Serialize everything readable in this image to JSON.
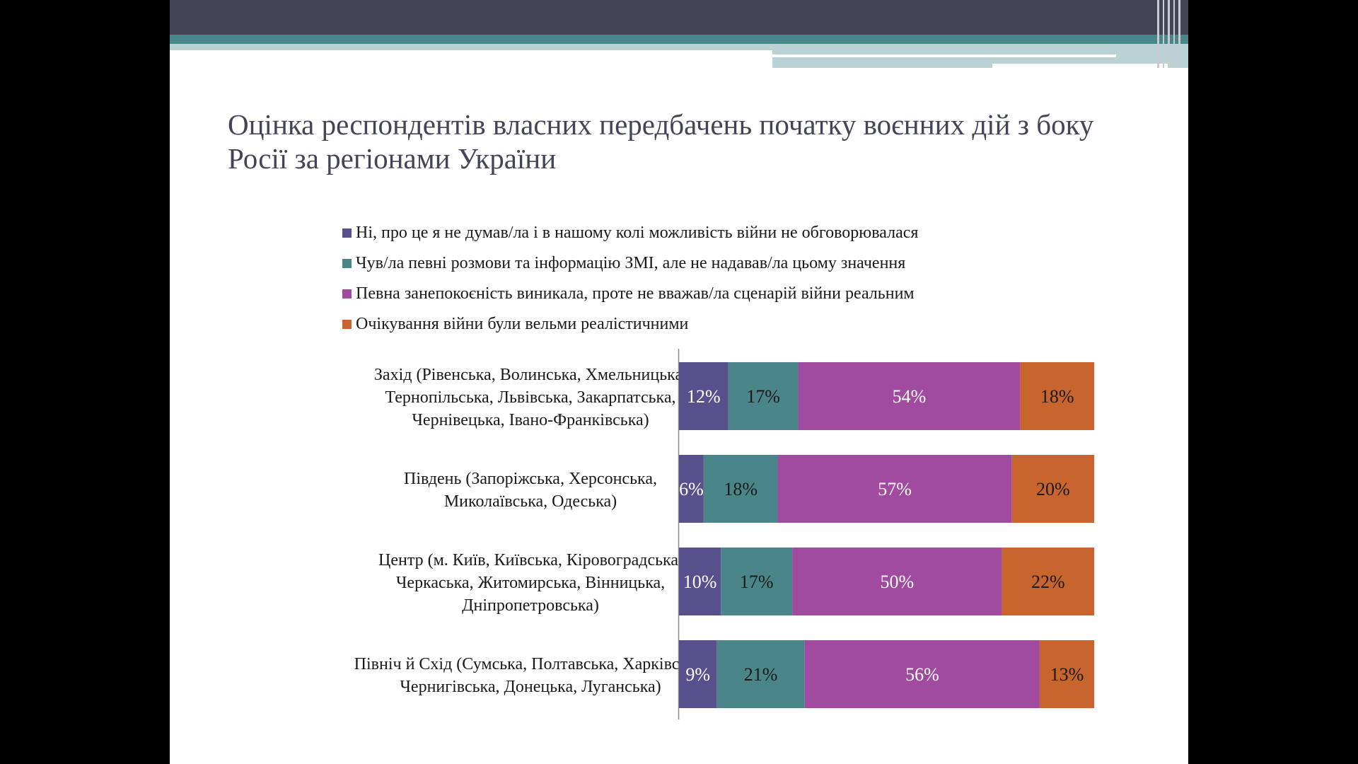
{
  "slide": {
    "title": "Оцінка респондентів власних передбачень початку воєнних дій з боку Росії за регіонами України"
  },
  "chart_data": {
    "type": "bar",
    "orientation": "horizontal",
    "stacked": true,
    "categories": [
      [
        "Захід (Рівенська, Волинська, Хмельницька,",
        "Тернопільська, Львівська, Закарпатська,",
        "Чернівецька, Івано-Франківська)"
      ],
      [
        "Південь (Запоріжська, Херсонська,",
        "Миколаївська, Одеська)"
      ],
      [
        "Центр (м. Київ, Київська, Кіровоградська,",
        "Черкаська, Житомирська, Вінницька,",
        "Дніпропетровська)"
      ],
      [
        "Північ й Схід (Сумська, Полтавська, Харківська,",
        "Чернигівська, Донецька, Луганська)"
      ]
    ],
    "series": [
      {
        "name": "Ні, про це я не думав/ла і в нашому колі можливість війни не обговорювалася",
        "color": "#58508d",
        "values": [
          12,
          6,
          10,
          9
        ],
        "labels": [
          "12%",
          "6%",
          "10%",
          "9%"
        ]
      },
      {
        "name": "Чув/ла певні розмови та інформацію ЗМІ, але не надавав/ла цьому значення",
        "color": "#4a8689",
        "values": [
          17,
          18,
          17,
          21
        ],
        "labels": [
          "17%",
          "18%",
          "17%",
          "21%"
        ]
      },
      {
        "name": "Певна занепокоєність виникала, проте не вважав/ла сценарій війни реальним",
        "color": "#a04ba0",
        "values": [
          54,
          57,
          50,
          56
        ],
        "labels": [
          "54%",
          "57%",
          "50%",
          "56%"
        ]
      },
      {
        "name": "Очікування війни були вельми реалістичними",
        "color": "#c8652f",
        "values": [
          18,
          20,
          22,
          13
        ],
        "labels": [
          "18%",
          "20%",
          "22%",
          "13%"
        ]
      }
    ],
    "legend": "top",
    "grid": false,
    "label_color": "#ffffff",
    "dark_label_color": "#1a1a1a"
  }
}
